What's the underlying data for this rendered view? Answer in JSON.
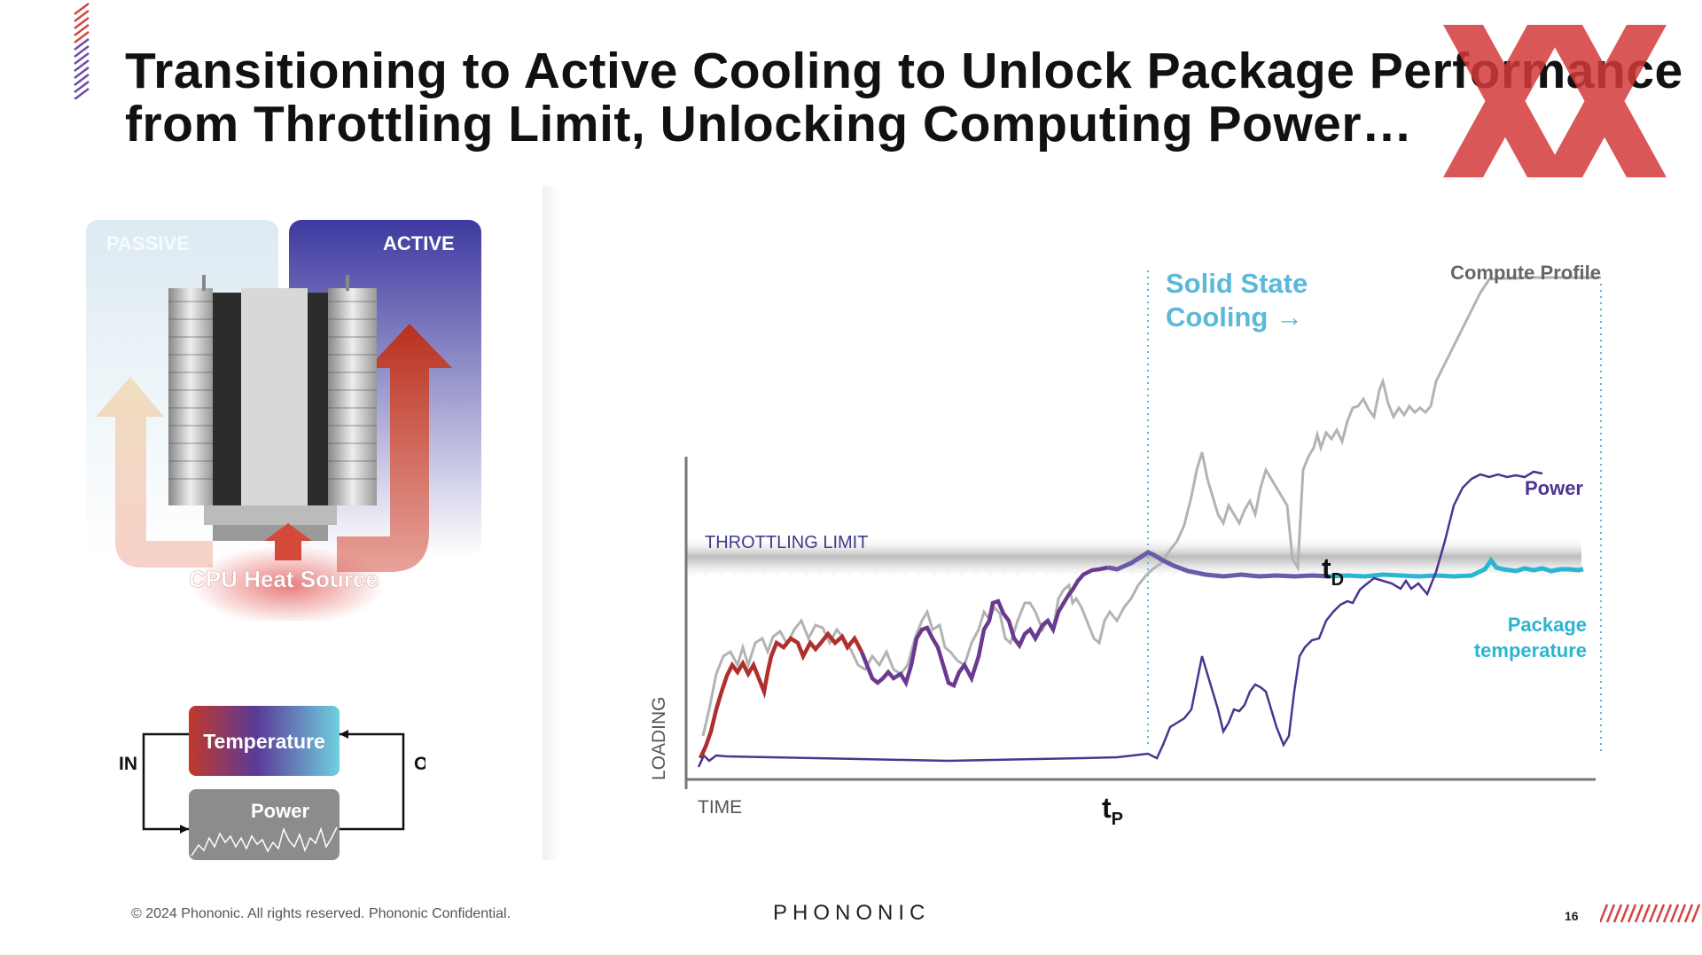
{
  "slide": {
    "title_line1": "Transitioning to Active Cooling to Unlock Package Performance",
    "title_line2": "from Throttling Limit, Unlocking Computing Power…",
    "footer_copyright": "© 2024 Phononic.  All rights reserved. Phononic Confidential.",
    "footer_logo": "PHONONIC",
    "page_number": "16"
  },
  "cooling_figure": {
    "passive_label": "PASSIVE",
    "active_label": "ACTIVE",
    "heat_source_label": "CPU Heat Source"
  },
  "loop_figure": {
    "in_label": "IN",
    "out_label": "OUT",
    "temperature_label": "Temperature",
    "power_label": "Power"
  },
  "chart_labels": {
    "throttling_limit": "THROTTLING LIMIT",
    "solid_state_line1": "Solid State",
    "solid_state_line2": "Cooling →",
    "compute_profile": "Compute Profile",
    "power": "Power",
    "package_temp_line1": "Package",
    "package_temp_line2": "temperature",
    "t_d": "t",
    "t_d_sub": "D",
    "t_p": "t",
    "t_p_sub": "P",
    "x_axis": "TIME",
    "y_axis": "LOADING"
  },
  "colors": {
    "accent_red": "#b52b2b",
    "accent_purple": "#5a3a96",
    "accent_cyan": "#2bb5d0",
    "compute_gray": "#b3b3b3",
    "watermark_red": "#d33a3a"
  },
  "icons": [
    "watermark-xx-logo",
    "heat-arrow-icon",
    "heatsink-image",
    "stripes-decoration"
  ]
}
